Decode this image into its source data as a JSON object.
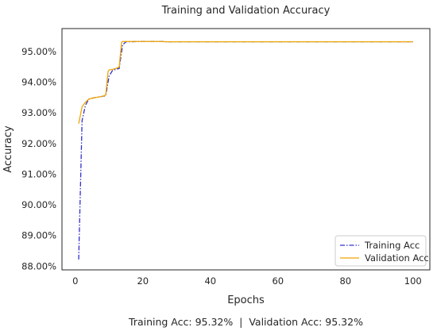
{
  "chart_data": {
    "type": "line",
    "title": "Training and Validation Accuracy",
    "xlabel": "Epochs",
    "ylabel": "Accuracy",
    "xlim": [
      -3.95,
      105
    ],
    "ylim": [
      87.88,
      95.75
    ],
    "xticks": [
      0,
      20,
      40,
      60,
      80,
      100
    ],
    "xtick_labels": [
      "0",
      "20",
      "40",
      "60",
      "80",
      "100"
    ],
    "yticks": [
      88,
      89,
      90,
      91,
      92,
      93,
      94,
      95
    ],
    "ytick_labels": [
      "88.00%",
      "89.00%",
      "90.00%",
      "91.00%",
      "92.00%",
      "93.00%",
      "94.00%",
      "95.00%"
    ],
    "grid": false,
    "legend_position": "lower-right",
    "series": [
      {
        "name": "Training Acc",
        "color": "#3030d0",
        "dash": "dash-dot",
        "x": [
          1,
          2,
          3,
          4,
          5,
          6,
          7,
          8,
          9,
          10,
          11,
          12,
          13,
          14,
          15,
          16,
          20,
          25,
          27,
          30,
          40,
          50,
          60,
          70,
          80,
          90,
          100
        ],
        "y": [
          88.22,
          92.75,
          93.25,
          93.45,
          93.48,
          93.5,
          93.52,
          93.54,
          93.56,
          94.2,
          94.38,
          94.42,
          94.45,
          95.22,
          95.32,
          95.32,
          95.33,
          95.33,
          95.32,
          95.32,
          95.32,
          95.32,
          95.32,
          95.32,
          95.32,
          95.32,
          95.32
        ]
      },
      {
        "name": "Validation Acc",
        "color": "#f0a500",
        "dash": "solid",
        "x": [
          1,
          2,
          3,
          4,
          5,
          6,
          7,
          8,
          9,
          9.7,
          10,
          11,
          12,
          13,
          13.7,
          14,
          15,
          20,
          25,
          27,
          30,
          40,
          50,
          60,
          70,
          80,
          90,
          100
        ],
        "y": [
          92.65,
          93.2,
          93.35,
          93.45,
          93.48,
          93.5,
          93.52,
          93.54,
          93.58,
          94.35,
          94.4,
          94.42,
          94.45,
          94.5,
          95.3,
          95.33,
          95.33,
          95.33,
          95.33,
          95.32,
          95.32,
          95.32,
          95.32,
          95.32,
          95.32,
          95.32,
          95.32,
          95.32
        ]
      }
    ],
    "footer": "Training Acc: 95.32%  |  Validation Acc: 95.32%"
  }
}
